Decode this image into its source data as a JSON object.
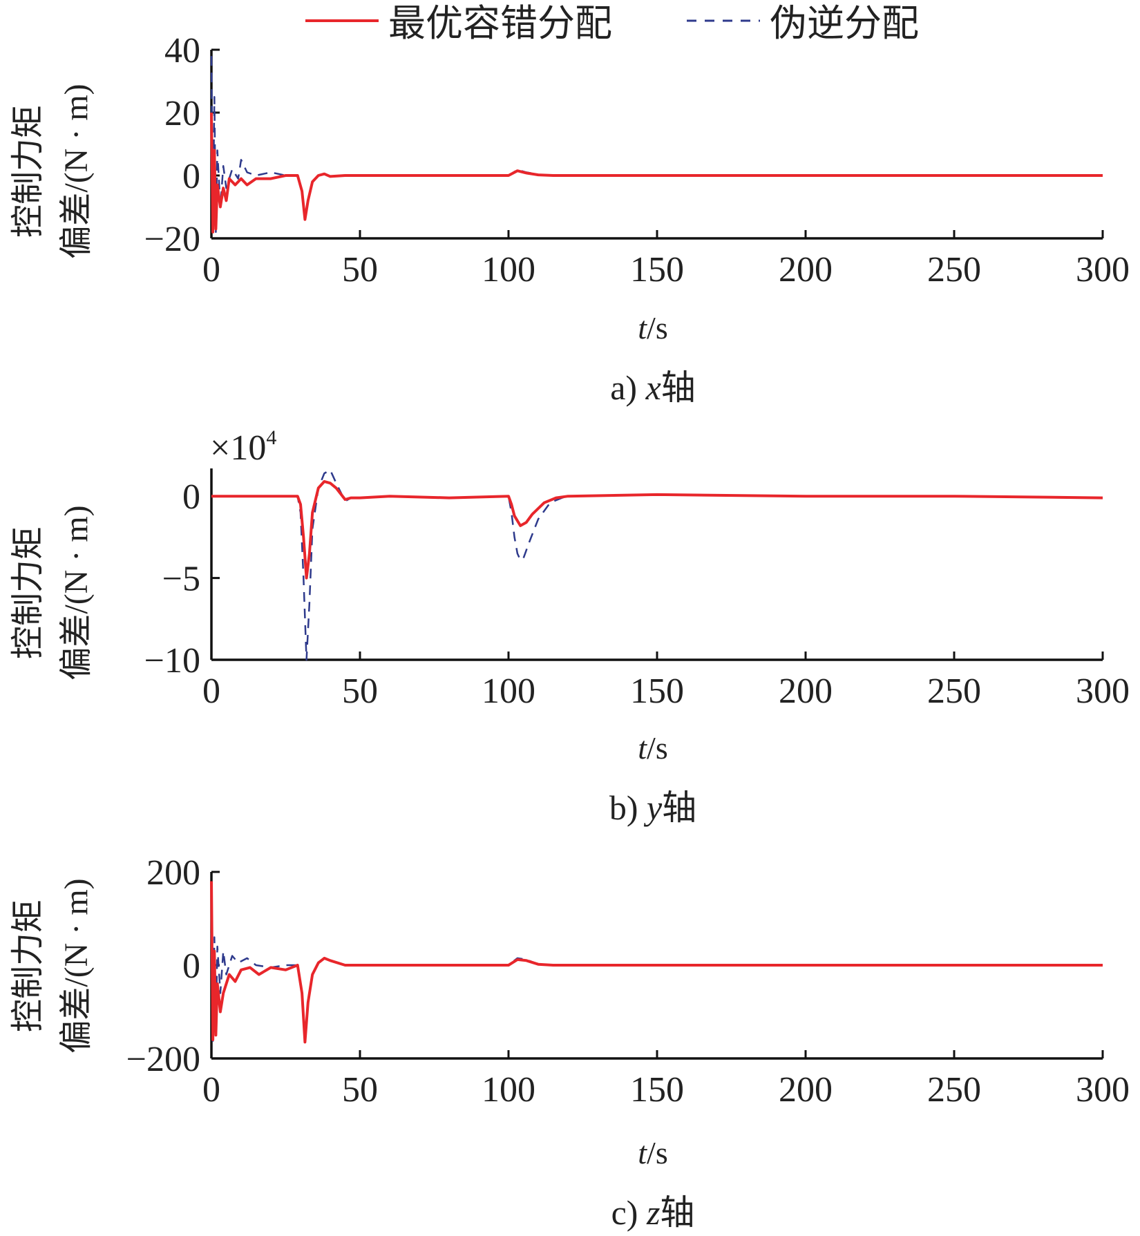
{
  "legend": [
    {
      "label": "最优容错分配",
      "color": "#e8262b",
      "style": "solid"
    },
    {
      "label": "伪逆分配",
      "color": "#2e3a8c",
      "style": "dashed"
    }
  ],
  "axis_text": {
    "ylabel_line1": "控制力矩",
    "ylabel_line2": "偏差/(N · m)",
    "xlabel_var": "t",
    "xlabel_unit": "/s",
    "exponent_prefix": "×10",
    "exponent_power": "4"
  },
  "captions": {
    "a_prefix": "a) ",
    "a_axis": "x",
    "a_suffix": "轴",
    "b_prefix": "b) ",
    "b_axis": "y",
    "b_suffix": "轴",
    "c_prefix": "c) ",
    "c_axis": "z",
    "c_suffix": "轴"
  },
  "chart_data": [
    {
      "type": "line",
      "xlabel": "t/s",
      "ylabel": "控制力矩偏差/(N · m)",
      "xlim": [
        0,
        300
      ],
      "ylim": [
        -20,
        40
      ],
      "xticks": [
        0,
        50,
        100,
        150,
        200,
        250,
        300
      ],
      "xtick_labels": [
        "0",
        "50",
        "100",
        "150",
        "200",
        "250",
        "300"
      ],
      "yticks": [
        -20,
        0,
        20,
        40
      ],
      "ytick_labels": [
        "−20",
        "0",
        "20",
        "40"
      ],
      "series": [
        {
          "name": "最优容错分配",
          "x": [
            0,
            0.5,
            1,
            1.5,
            2,
            3,
            4,
            5,
            6,
            8,
            10,
            12,
            15,
            20,
            25,
            29,
            30.5,
            31.5,
            32.5,
            34,
            36,
            38,
            40,
            45,
            50,
            80,
            100,
            103,
            106,
            110,
            115,
            150,
            200,
            250,
            300
          ],
          "y": [
            20,
            -18,
            8,
            -17,
            -3,
            -10,
            -4,
            -8,
            -1,
            -3,
            -1,
            -3,
            -1,
            -1,
            0,
            0,
            -5,
            -14,
            -8,
            -2,
            0,
            0.5,
            -0.3,
            0,
            0,
            0,
            0,
            1.5,
            0.8,
            0.2,
            0,
            0,
            0,
            0,
            0
          ]
        },
        {
          "name": "伪逆分配",
          "x": [
            0,
            0.5,
            1,
            1.5,
            2,
            3,
            4,
            5,
            7,
            9,
            10,
            12,
            15,
            20,
            25,
            29,
            30.5,
            31.5,
            32.5,
            34,
            36,
            38,
            40,
            45,
            50,
            80,
            100,
            103,
            106,
            110,
            115,
            150,
            200,
            250,
            300
          ],
          "y": [
            38,
            -19,
            25,
            -18,
            8,
            -10,
            3,
            -4,
            2,
            -1,
            5,
            1,
            0,
            1,
            0,
            0,
            -5,
            -13,
            -8,
            -2,
            0,
            0.5,
            -0.3,
            0,
            0,
            0,
            0,
            1.8,
            1,
            0.3,
            0,
            0,
            0,
            0,
            0
          ]
        }
      ]
    },
    {
      "type": "line",
      "xlabel": "t/s",
      "ylabel": "控制力矩偏差/(N · m)",
      "y_multiplier": "×10^4",
      "xlim": [
        0,
        300
      ],
      "ylim": [
        -10,
        1.7
      ],
      "xticks": [
        0,
        50,
        100,
        150,
        200,
        250,
        300
      ],
      "xtick_labels": [
        "0",
        "50",
        "100",
        "150",
        "200",
        "250",
        "300"
      ],
      "yticks": [
        -10,
        -5,
        0
      ],
      "ytick_labels": [
        "−10",
        "−5",
        "0"
      ],
      "series": [
        {
          "name": "最优容错分配",
          "x": [
            0,
            20,
            29,
            30,
            31,
            32,
            33,
            34,
            36,
            38,
            40,
            42,
            45,
            47,
            50,
            60,
            80,
            100,
            101,
            102,
            104,
            106,
            108,
            112,
            116,
            120,
            150,
            200,
            250,
            300
          ],
          "y": [
            0,
            0,
            0,
            -0.5,
            -2.5,
            -5,
            -3.5,
            -1,
            0.5,
            0.9,
            0.8,
            0.5,
            -0.2,
            -0.1,
            -0.1,
            0,
            -0.1,
            0,
            -0.5,
            -1.2,
            -1.8,
            -1.6,
            -1.1,
            -0.4,
            -0.1,
            0,
            0.1,
            0,
            0,
            -0.1
          ]
        },
        {
          "name": "伪逆分配",
          "x": [
            0,
            20,
            29,
            30,
            31,
            32,
            33,
            34,
            36,
            38,
            40,
            42,
            45,
            47,
            50,
            60,
            80,
            100,
            101,
            102,
            103,
            104,
            105,
            107,
            110,
            114,
            118,
            120,
            150,
            200,
            250,
            300
          ],
          "y": [
            0,
            0,
            0,
            -1,
            -5,
            -10,
            -6.5,
            -2,
            0.5,
            1.4,
            1.6,
            0.8,
            -0.3,
            -0.1,
            -0.1,
            0,
            -0.1,
            0,
            -1,
            -2.5,
            -3.5,
            -3.9,
            -3.8,
            -2.8,
            -1.4,
            -0.4,
            -0.1,
            0,
            0.1,
            0,
            0,
            -0.1
          ]
        }
      ]
    },
    {
      "type": "line",
      "xlabel": "t/s",
      "ylabel": "控制力矩偏差/(N · m)",
      "xlim": [
        0,
        300
      ],
      "ylim": [
        -200,
        200
      ],
      "xticks": [
        0,
        50,
        100,
        150,
        200,
        250,
        300
      ],
      "xtick_labels": [
        "0",
        "50",
        "100",
        "150",
        "200",
        "250",
        "300"
      ],
      "yticks": [
        -200,
        0,
        200
      ],
      "ytick_labels": [
        "−200",
        "0",
        "200"
      ],
      "series": [
        {
          "name": "最优容错分配",
          "x": [
            0,
            0.5,
            1,
            1.5,
            2,
            3,
            4,
            6,
            8,
            10,
            13,
            16,
            20,
            25,
            29,
            30.5,
            31.5,
            32.5,
            34,
            36,
            38,
            40,
            45,
            50,
            80,
            100,
            103,
            106,
            110,
            115,
            150,
            200,
            250,
            300
          ],
          "y": [
            180,
            -160,
            30,
            -150,
            -40,
            -100,
            -60,
            -20,
            -35,
            -10,
            -5,
            -20,
            -5,
            -10,
            0,
            -60,
            -165,
            -80,
            -20,
            5,
            15,
            10,
            0,
            0,
            0,
            0,
            12,
            10,
            2,
            0,
            0,
            0,
            0,
            0
          ]
        },
        {
          "name": "伪逆分配",
          "x": [
            0,
            0.5,
            1,
            1.5,
            2,
            3,
            4,
            5,
            7,
            9,
            12,
            15,
            20,
            25,
            29,
            30.5,
            31.5,
            32.5,
            34,
            36,
            38,
            40,
            45,
            50,
            80,
            100,
            103,
            106,
            110,
            115,
            150,
            200,
            250,
            300
          ],
          "y": [
            70,
            -170,
            60,
            -130,
            40,
            -60,
            30,
            -20,
            20,
            5,
            15,
            0,
            -5,
            0,
            0,
            -60,
            -160,
            -80,
            -20,
            5,
            15,
            10,
            0,
            0,
            0,
            0,
            15,
            12,
            2,
            0,
            0,
            0,
            0,
            0
          ]
        }
      ]
    }
  ]
}
